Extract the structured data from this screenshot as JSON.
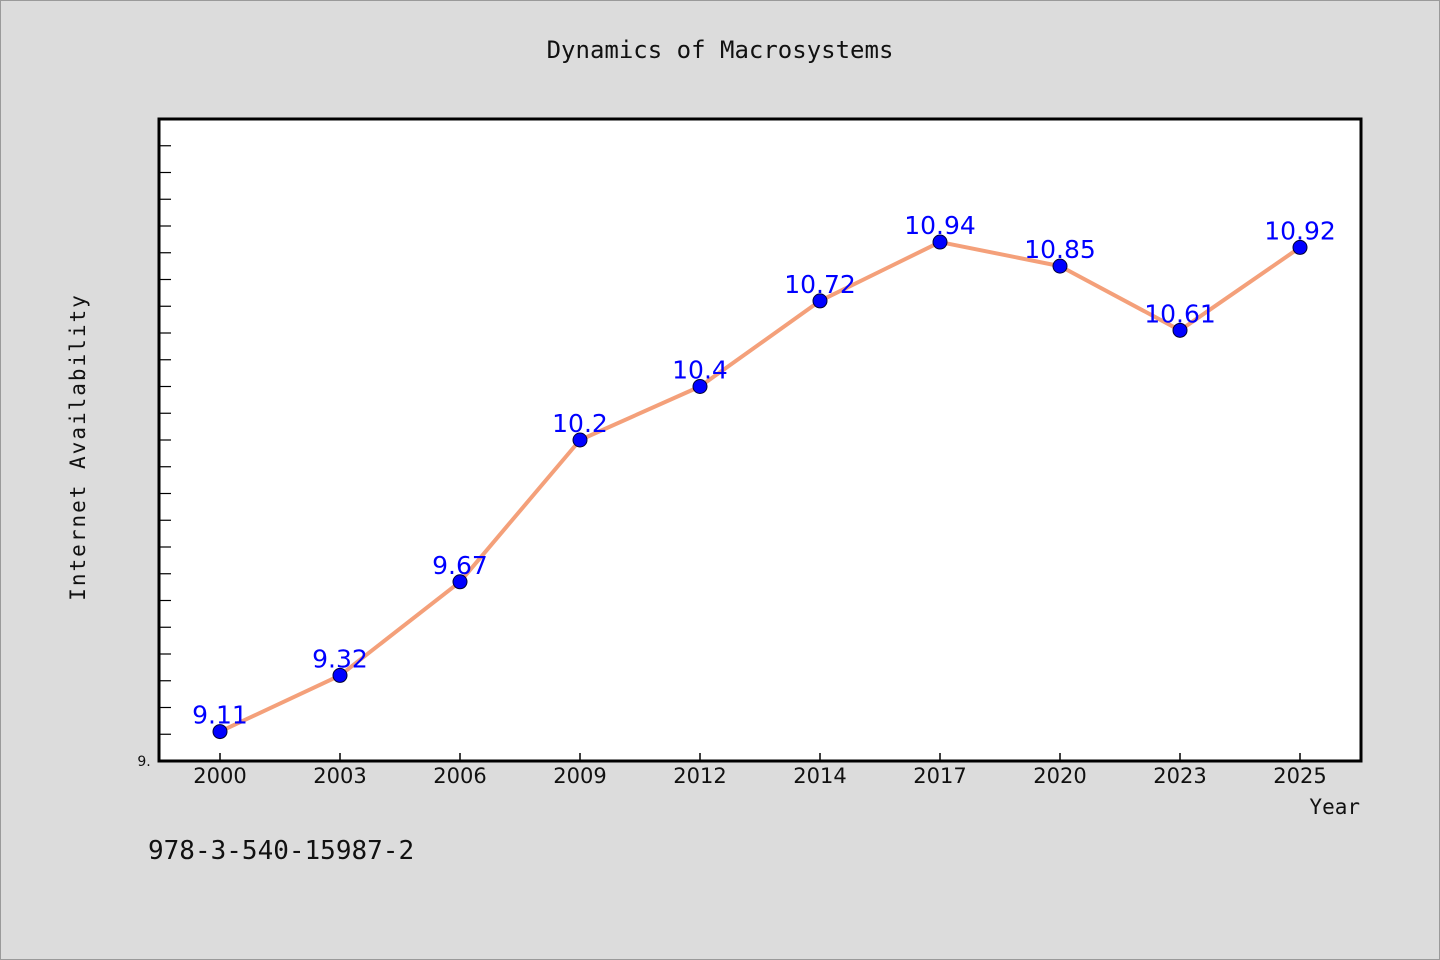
{
  "chart_data": {
    "type": "line",
    "title": "Dynamics of Macrosystems",
    "xlabel": "Year",
    "ylabel": "Internet Availability",
    "categories": [
      "2000",
      "2003",
      "2006",
      "2009",
      "2012",
      "2014",
      "2017",
      "2020",
      "2023",
      "2025"
    ],
    "series": [
      {
        "values": [
          9.11,
          9.32,
          9.67,
          10.2,
          10.4,
          10.72,
          10.94,
          10.85,
          10.61,
          10.92
        ],
        "data_labels": [
          "9.11",
          "9.32",
          "9.67",
          "10.2",
          "10.4",
          "10.72",
          "10.94",
          "10.85",
          "10.61",
          "10.92"
        ],
        "line_color": "#f4a07a",
        "marker_color": "#0000ff"
      }
    ],
    "ylim": [
      9.0,
      11.4
    ],
    "y_min_tick_label": "9.",
    "grid": false,
    "legend": "none"
  },
  "footnote": "978-3-540-15987-2",
  "colors": {
    "background": "#dcdcdc",
    "plot_area": "#ffffff",
    "label_color": "#0000ff"
  }
}
